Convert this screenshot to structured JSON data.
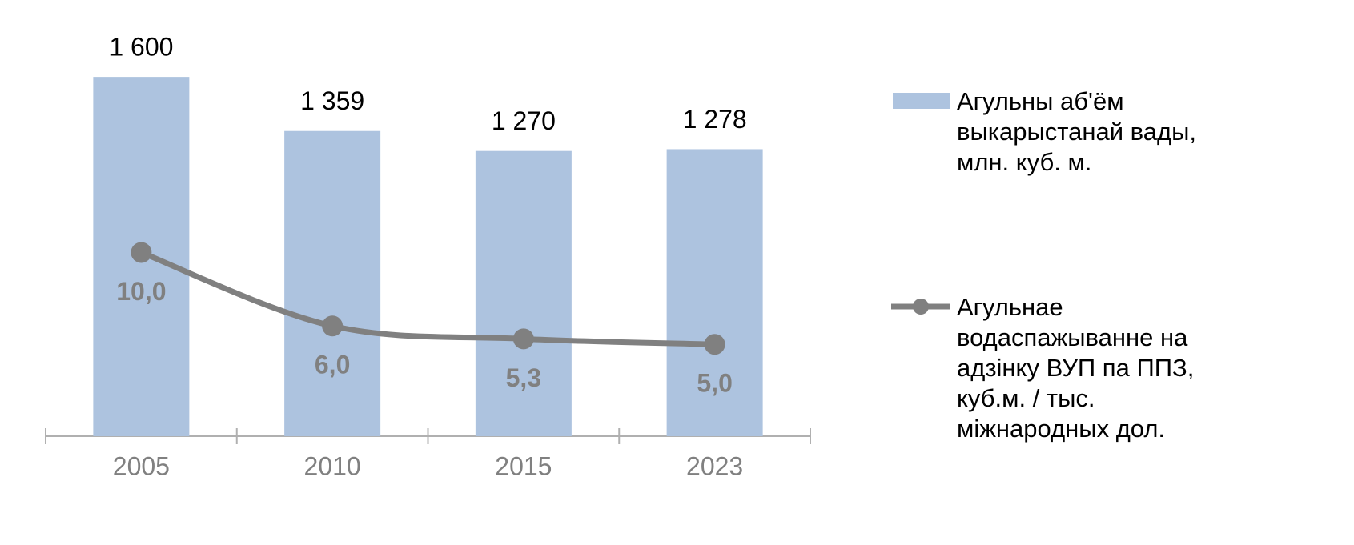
{
  "chart_data": {
    "type": "bar_line",
    "categories": [
      "2005",
      "2010",
      "2015",
      "2023"
    ],
    "series": [
      {
        "name": "Агульны аб'ём выкарыстанай вады, млн. куб. м.",
        "type": "bar",
        "color": "#adc3df",
        "values": [
          1600,
          1359,
          1270,
          1278
        ],
        "value_labels": [
          "1 600",
          "1 359",
          "1 270",
          "1 278"
        ]
      },
      {
        "name": "Агульнае водаспажыванне на адзінку ВУП па ППЗ, куб.м. / тыс. міжнародных дол.",
        "type": "line",
        "color": "#808080",
        "axis": "y2",
        "values": [
          10.0,
          6.0,
          5.3,
          5.0
        ],
        "value_labels": [
          "10,0",
          "6,0",
          "5,3",
          "5,0"
        ]
      }
    ],
    "ylim": [
      0,
      1800
    ],
    "y2lim": [
      0,
      22
    ]
  }
}
